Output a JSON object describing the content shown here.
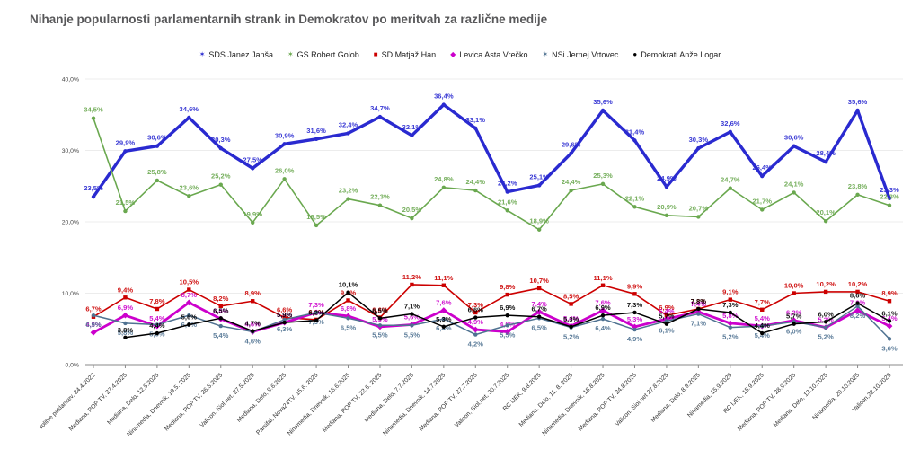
{
  "chart_data": {
    "type": "line",
    "title": "Nihanje popularnosti parlamentarnih strank in Demokratov po meritvah za različne medije",
    "xlabel": "",
    "ylabel": "",
    "ylim": [
      0,
      40
    ],
    "yticks": [
      "0,0%",
      "10,0%",
      "20,0%",
      "30,0%",
      "40,0%"
    ],
    "grid": true,
    "legend_position": "top-center",
    "number_format": "comma-decimal-percent",
    "categories": [
      "volitve poslancev, 24.4.2022",
      "Mediana, POP TV, 27.4.2025",
      "Mediana, Delo, 12.5.2025",
      "Ninamedia, Dnevnik, 19.5. 2025",
      "Mediana, POP TV, 26.5.2025",
      "Valicon, Siol.net, 27.5.2025",
      "Mediana, Delo, 9.6.2025",
      "Parsifal, Nova24TV, 15.6. 2025",
      "Ninamedia, Dnevnik, 16.6.2025",
      "Mediana, POP TV, 22.6. 2025",
      "Mediana, Delo, 7.7.2025",
      "Ninamedia, Dnevnik, 14.7.2025",
      "Mediana, POP TV, 27.7.2025",
      "Valicon, Siol.net, 30.7.2025",
      "RC IJEK, 9.8.2025",
      "Mediana, Delo, 11. 8. 2025",
      "Ninamedia, Dnevnik, 18.8.2025",
      "Mediana, POP TV, 24.8.2025",
      "Valicon, Siol.net 27.8.2025",
      "Mediana, Delo, 8.9.2025",
      "Ninamedia, 15.9.2025",
      "RC IJEK, 15.9.2025",
      "Mediana, POP TV, 28.9.2025",
      "Mediana, Delo, 13.10.2025",
      "Ninamedia, 20.10.2025",
      "Valicon,22.10.2025"
    ],
    "series": [
      {
        "name": "SDS Janez Janša",
        "color": "#2a2ad0",
        "marker": "star",
        "legend_glyph": "✶",
        "width": 3.4,
        "label_dy": -7,
        "values": [
          23.5,
          29.9,
          30.6,
          34.6,
          30.3,
          27.5,
          30.9,
          31.6,
          32.4,
          34.7,
          32.1,
          36.4,
          33.1,
          24.2,
          25.1,
          29.6,
          35.6,
          31.4,
          24.9,
          30.3,
          32.6,
          26.4,
          30.6,
          28.4,
          35.6,
          23.3
        ]
      },
      {
        "name": "GS Robert Golob",
        "color": "#6aa84f",
        "marker": "star",
        "legend_glyph": "✶",
        "width": 1.6,
        "label_dy": -7,
        "values": [
          34.5,
          21.5,
          25.8,
          23.6,
          25.2,
          19.9,
          26.0,
          19.5,
          23.2,
          22.3,
          20.5,
          24.8,
          24.4,
          21.6,
          18.9,
          24.4,
          25.3,
          22.1,
          20.9,
          20.7,
          24.7,
          21.7,
          24.1,
          20.1,
          23.8,
          22.3
        ]
      },
      {
        "name": "SD Matjaž Han",
        "color": "#cc0000",
        "marker": "square",
        "legend_glyph": "■",
        "width": 1.6,
        "label_dy": -6,
        "values": [
          6.7,
          9.4,
          7.8,
          10.5,
          8.2,
          8.9,
          6.6,
          6.3,
          9.0,
          6.6,
          11.2,
          11.1,
          7.3,
          9.8,
          10.7,
          8.5,
          11.1,
          9.9,
          6.9,
          7.8,
          9.1,
          7.7,
          10.0,
          10.2,
          10.2,
          8.9
        ]
      },
      {
        "name": "Levica  Asta Vrečko",
        "color": "#cc00cc",
        "marker": "diamond",
        "legend_glyph": "◆",
        "width": 2.8,
        "label_dy": -6,
        "values": [
          4.5,
          6.9,
          5.4,
          8.7,
          6.4,
          4.6,
          5.9,
          7.3,
          6.8,
          5.3,
          5.6,
          7.6,
          4.9,
          4.6,
          7.4,
          5.4,
          7.6,
          5.3,
          6.4,
          7.4,
          5.8,
          5.4,
          6.2,
          5.2,
          7.6,
          5.4
        ]
      },
      {
        "name": "NSi Jernej Vrtovec",
        "color": "#4f7291",
        "marker": "star",
        "legend_glyph": "✶",
        "width": 1.5,
        "label_dy": 13,
        "values": [
          6.9,
          5.8,
          5.6,
          6.9,
          5.4,
          4.6,
          6.3,
          7.3,
          6.5,
          5.5,
          5.5,
          6.4,
          4.2,
          5.5,
          6.5,
          5.2,
          6.4,
          4.9,
          6.1,
          7.1,
          5.2,
          5.4,
          6.0,
          5.2,
          8.2,
          3.6
        ]
      },
      {
        "name": "Demokrati Anže Logar",
        "color": "#000000",
        "marker": "circle",
        "legend_glyph": "●",
        "width": 1.5,
        "label_dy": -6,
        "values": [
          null,
          3.8,
          4.4,
          5.6,
          6.5,
          4.7,
          5.9,
          6.2,
          10.1,
          6.5,
          7.1,
          5.3,
          6.6,
          6.9,
          6.7,
          5.3,
          6.9,
          7.3,
          5.7,
          7.8,
          7.3,
          4.4,
          5.7,
          6.0,
          8.6,
          6.1
        ]
      }
    ]
  }
}
